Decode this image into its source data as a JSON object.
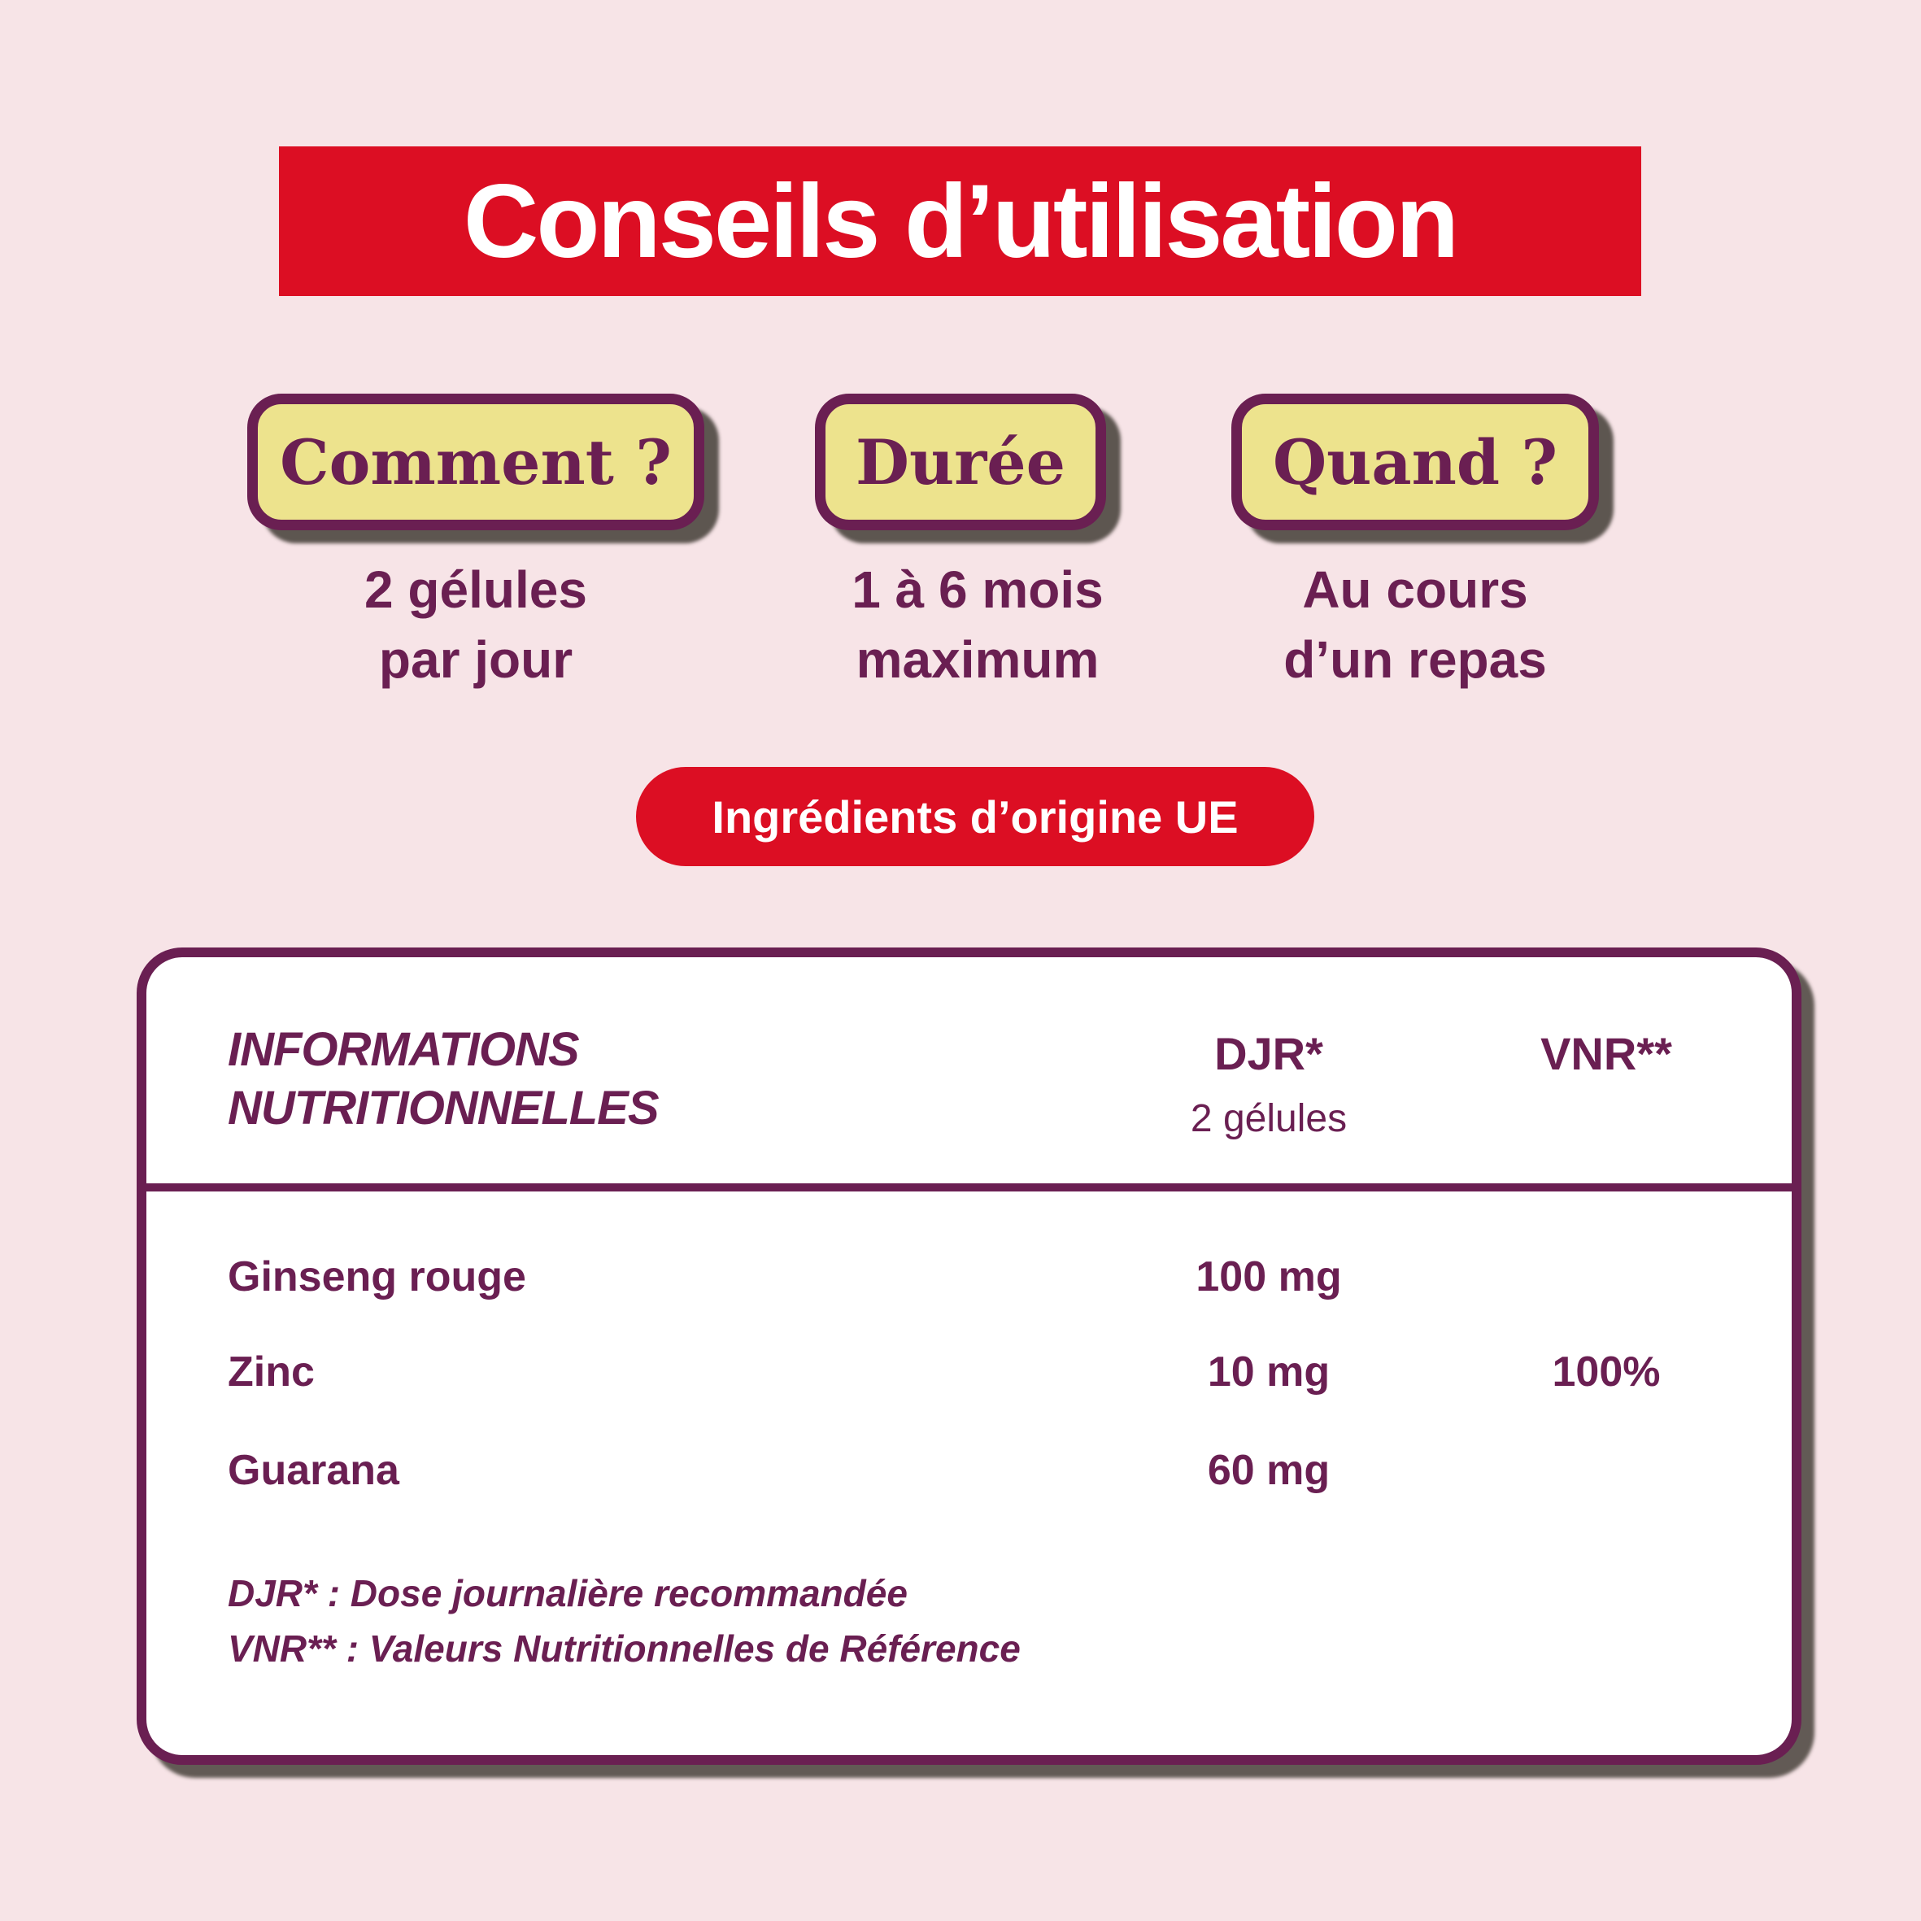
{
  "title": {
    "label": "Conseils d’utilisation"
  },
  "usage_buttons": [
    {
      "label": "Comment ?",
      "caption_line1": "2 gélules",
      "caption_line2": "par jour"
    },
    {
      "label": "Durée",
      "caption_line1": "1 à 6 mois",
      "caption_line2": "maximum"
    },
    {
      "label": "Quand ?",
      "caption_line1": "Au cours",
      "caption_line2": "d’un repas"
    }
  ],
  "origin_badge": {
    "label": "Ingrédients d’origine UE"
  },
  "nutrition_table": {
    "header": {
      "name_line1": "INFORMATIONS",
      "name_line2": "NUTRITIONNELLES",
      "djr": "DJR*",
      "djr_sub": "2 gélules",
      "vnr": "VNR**"
    },
    "rows": [
      {
        "name": "Ginseng rouge",
        "djr": "100 mg",
        "vnr": ""
      },
      {
        "name": "Zinc",
        "djr": "10 mg",
        "vnr": "100%"
      },
      {
        "name": "Guarana",
        "djr": "60 mg",
        "vnr": ""
      }
    ],
    "footnotes": [
      "DJR* : Dose journalière recommandée",
      "VNR** : Valeurs Nutritionnelles de Référence"
    ]
  },
  "colors": {
    "background_pink": "#F7E4E7",
    "accent_red": "#DC0E23",
    "brand_purple": "#6A1F52",
    "button_yellow": "#EDE38D",
    "card_white": "#FFFFFF",
    "shadow_gray": "#48423B"
  }
}
